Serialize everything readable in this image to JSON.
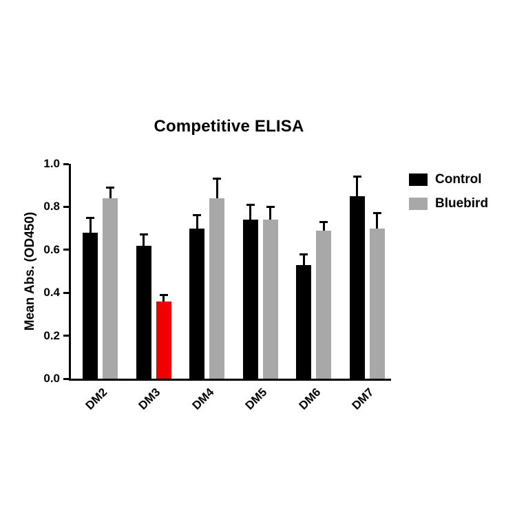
{
  "title": "Competitive ELISA",
  "legend": {
    "items": [
      {
        "label": "Control",
        "color": "#000000"
      },
      {
        "label": "Bluebird",
        "color": "#a8a8a8"
      }
    ]
  },
  "chart_data": {
    "type": "bar",
    "title": "Competitive ELISA",
    "xlabel": "",
    "ylabel": "Mean Abs. (OD450)",
    "ylim": [
      0.0,
      1.0
    ],
    "yticks": [
      0.0,
      0.2,
      0.4,
      0.6,
      0.8,
      1.0
    ],
    "ytick_labels": [
      "0.0",
      "0.2",
      "0.4",
      "0.6",
      "0.8",
      "1.0"
    ],
    "categories": [
      "DM2",
      "DM3",
      "DM4",
      "DM5",
      "DM6",
      "DM7"
    ],
    "grid": false,
    "legend_position": "right",
    "series": [
      {
        "name": "Control",
        "color": "#000000",
        "values": [
          0.68,
          0.62,
          0.7,
          0.74,
          0.53,
          0.85
        ],
        "errors": [
          0.07,
          0.05,
          0.06,
          0.07,
          0.05,
          0.09
        ]
      },
      {
        "name": "Bluebird",
        "color": "#a8a8a8",
        "values": [
          0.84,
          0.36,
          0.84,
          0.74,
          0.69,
          0.7
        ],
        "errors": [
          0.05,
          0.03,
          0.09,
          0.06,
          0.04,
          0.07
        ],
        "bar_colors": [
          "#a8a8a8",
          "#f10000",
          "#a8a8a8",
          "#a8a8a8",
          "#a8a8a8",
          "#a8a8a8"
        ]
      }
    ],
    "highlight": {
      "category": "DM3",
      "series": "Bluebird",
      "color": "#f10000"
    },
    "error_bar_color": "#000000"
  }
}
